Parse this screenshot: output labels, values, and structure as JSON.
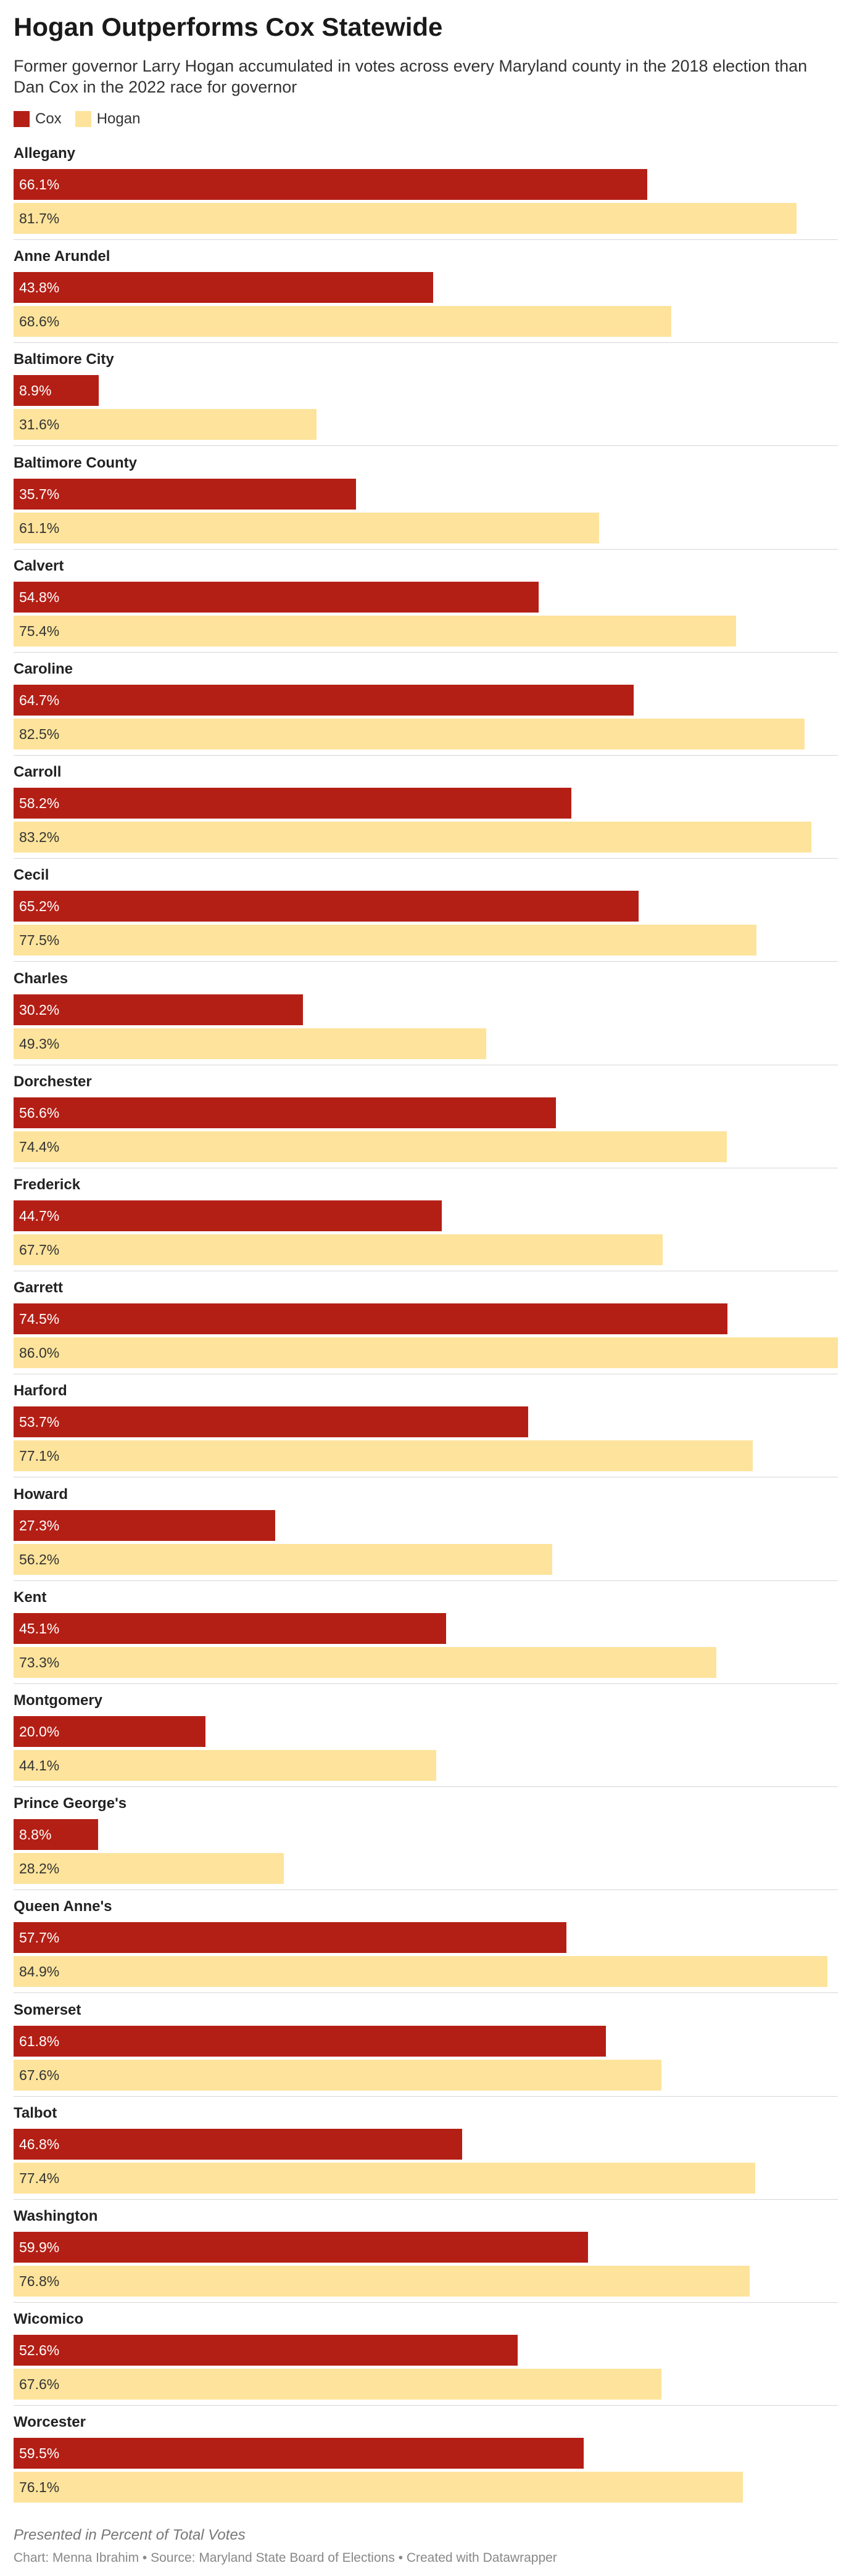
{
  "header": {
    "title": "Hogan Outperforms Cox Statewide",
    "subtitle": "Former governor Larry Hogan accumulated in votes across every Maryland county in the 2018 election than Dan Cox in the 2022 race for governor"
  },
  "legend": [
    {
      "name": "Cox",
      "color": "#b41f15"
    },
    {
      "name": "Hogan",
      "color": "#fde39b"
    }
  ],
  "footer": {
    "note": "Presented in Percent of Total Votes",
    "credit": "Chart: Menna Ibrahim • Source: Maryland State Board of Elections • Created with Datawrapper"
  },
  "chart_data": {
    "type": "bar",
    "orientation": "horizontal",
    "title": "Hogan Outperforms Cox Statewide",
    "xlim": [
      0,
      86
    ],
    "categories": [
      "Allegany",
      "Anne Arundel",
      "Baltimore City",
      "Baltimore County",
      "Calvert",
      "Caroline",
      "Carroll",
      "Cecil",
      "Charles",
      "Dorchester",
      "Frederick",
      "Garrett",
      "Harford",
      "Howard",
      "Kent",
      "Montgomery",
      "Prince George's",
      "Queen Anne's",
      "Somerset",
      "Talbot",
      "Washington",
      "Wicomico",
      "Worcester"
    ],
    "series": [
      {
        "name": "Cox",
        "color": "#b41f15",
        "values": [
          66.1,
          43.8,
          8.9,
          35.7,
          54.8,
          64.7,
          58.2,
          65.2,
          30.2,
          56.6,
          44.7,
          74.5,
          53.7,
          27.3,
          45.1,
          20.0,
          8.8,
          57.7,
          61.8,
          46.8,
          59.9,
          52.6,
          59.5
        ],
        "labels": [
          "66.1%",
          "43.8%",
          "8.9%",
          "35.7%",
          "54.8%",
          "64.7%",
          "58.2%",
          "65.2%",
          "30.2%",
          "56.6%",
          "44.7%",
          "74.5%",
          "53.7%",
          "27.3%",
          "45.1%",
          "20.0%",
          "8.8%",
          "57.7%",
          "61.8%",
          "46.8%",
          "59.9%",
          "52.6%",
          "59.5%"
        ]
      },
      {
        "name": "Hogan",
        "color": "#fde39b",
        "values": [
          81.7,
          68.6,
          31.6,
          61.1,
          75.4,
          82.5,
          83.2,
          77.5,
          49.3,
          74.4,
          67.7,
          86.0,
          77.1,
          56.2,
          73.3,
          44.1,
          28.2,
          84.9,
          67.6,
          77.4,
          76.8,
          67.6,
          76.1
        ],
        "labels": [
          "81.7%",
          "68.6%",
          "31.6%",
          "61.1%",
          "75.4%",
          "82.5%",
          "83.2%",
          "77.5%",
          "49.3%",
          "74.4%",
          "67.7%",
          "86.0%",
          "77.1%",
          "56.2%",
          "73.3%",
          "44.1%",
          "28.2%",
          "84.9%",
          "67.6%",
          "77.4%",
          "76.8%",
          "67.6%",
          "76.1%"
        ]
      }
    ]
  }
}
